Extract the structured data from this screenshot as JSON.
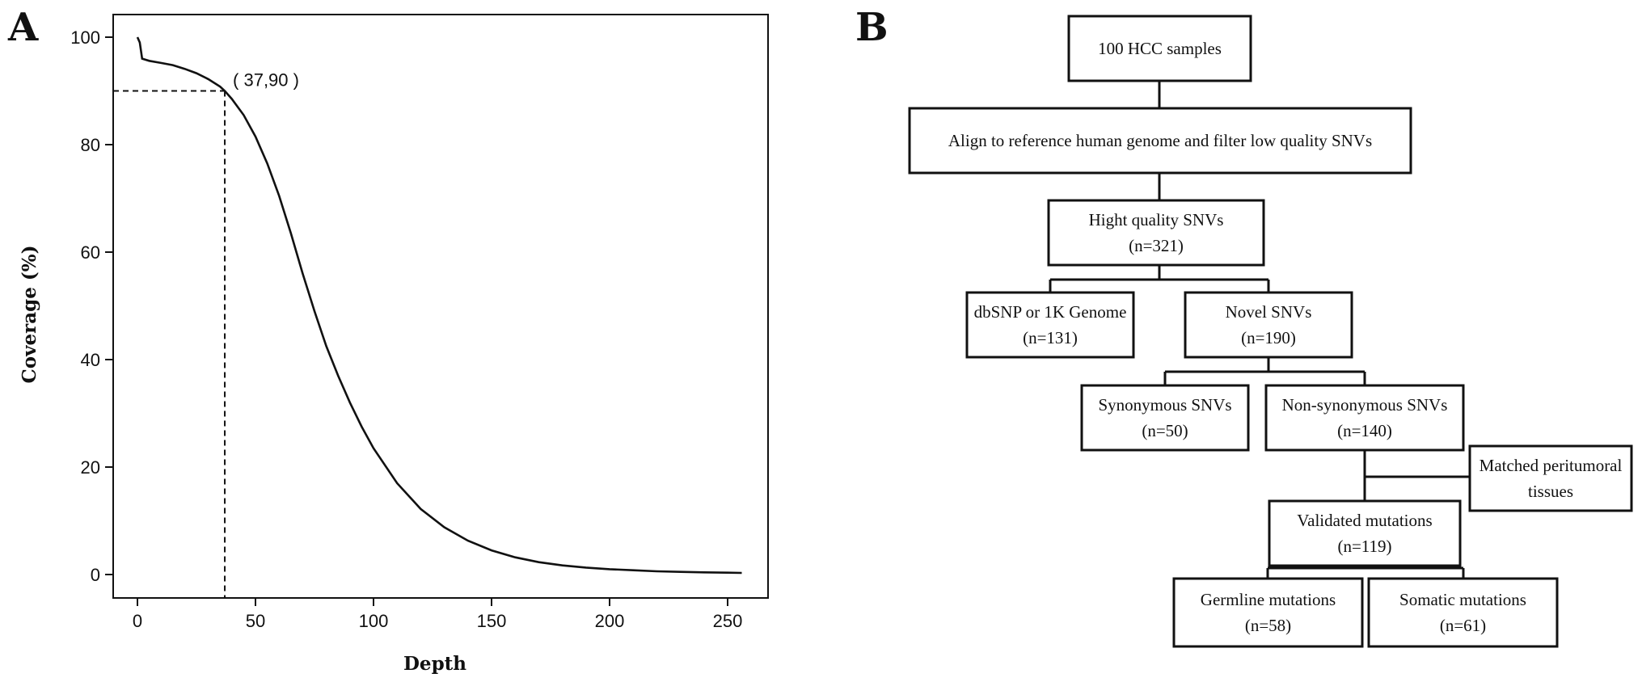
{
  "panels": {
    "a_label": "A",
    "b_label": "B"
  },
  "chart_data": {
    "type": "line",
    "title": "",
    "xlabel": "Depth",
    "ylabel": "Coverage (%)",
    "xlim": [
      0,
      260
    ],
    "ylim": [
      0,
      100
    ],
    "x_ticks": [
      0,
      50,
      100,
      150,
      200,
      250
    ],
    "y_ticks": [
      0,
      20,
      40,
      60,
      80,
      100
    ],
    "grid": false,
    "series": [
      {
        "x": [
          0,
          1,
          2,
          5,
          10,
          15,
          20,
          25,
          30,
          35,
          37,
          40,
          45,
          50,
          55,
          60,
          65,
          70,
          75,
          80,
          85,
          90,
          95,
          100,
          110,
          120,
          130,
          140,
          150,
          160,
          170,
          180,
          190,
          200,
          210,
          220,
          230,
          240,
          250,
          256
        ],
        "y": [
          100,
          99,
          96,
          95.6,
          95.2,
          94.8,
          94.1,
          93.3,
          92.2,
          90.8,
          90,
          88.5,
          85.5,
          81.5,
          76.5,
          70.5,
          63.5,
          56,
          49,
          42.5,
          37,
          32,
          27.5,
          23.5,
          17,
          12.2,
          8.8,
          6.3,
          4.5,
          3.2,
          2.3,
          1.7,
          1.3,
          1.0,
          0.8,
          0.6,
          0.5,
          0.4,
          0.35,
          0.3
        ]
      }
    ],
    "reference_point": {
      "x": 37,
      "y": 90,
      "label": "( 37,90 )"
    }
  },
  "flowchart": {
    "boxes": [
      {
        "id": "samples",
        "lines": [
          "100 HCC samples"
        ]
      },
      {
        "id": "align",
        "lines": [
          "Align to reference human genome and filter low quality SNVs"
        ]
      },
      {
        "id": "hq",
        "lines": [
          "Hight quality SNVs",
          "(n=321)"
        ]
      },
      {
        "id": "dbsnp",
        "lines": [
          "dbSNP or 1K Genome",
          "(n=131)"
        ]
      },
      {
        "id": "novel",
        "lines": [
          "Novel SNVs",
          "(n=190)"
        ]
      },
      {
        "id": "syn",
        "lines": [
          "Synonymous SNVs",
          "(n=50)"
        ]
      },
      {
        "id": "nonsyn",
        "lines": [
          "Non-synonymous SNVs",
          "(n=140)"
        ]
      },
      {
        "id": "matched",
        "lines": [
          "Matched peritumoral",
          "tissues"
        ]
      },
      {
        "id": "validated",
        "lines": [
          "Validated mutations",
          "(n=119)"
        ]
      },
      {
        "id": "germline",
        "lines": [
          "Germline mutations",
          "(n=58)"
        ]
      },
      {
        "id": "somatic",
        "lines": [
          "Somatic mutations",
          "(n=61)"
        ]
      }
    ]
  }
}
